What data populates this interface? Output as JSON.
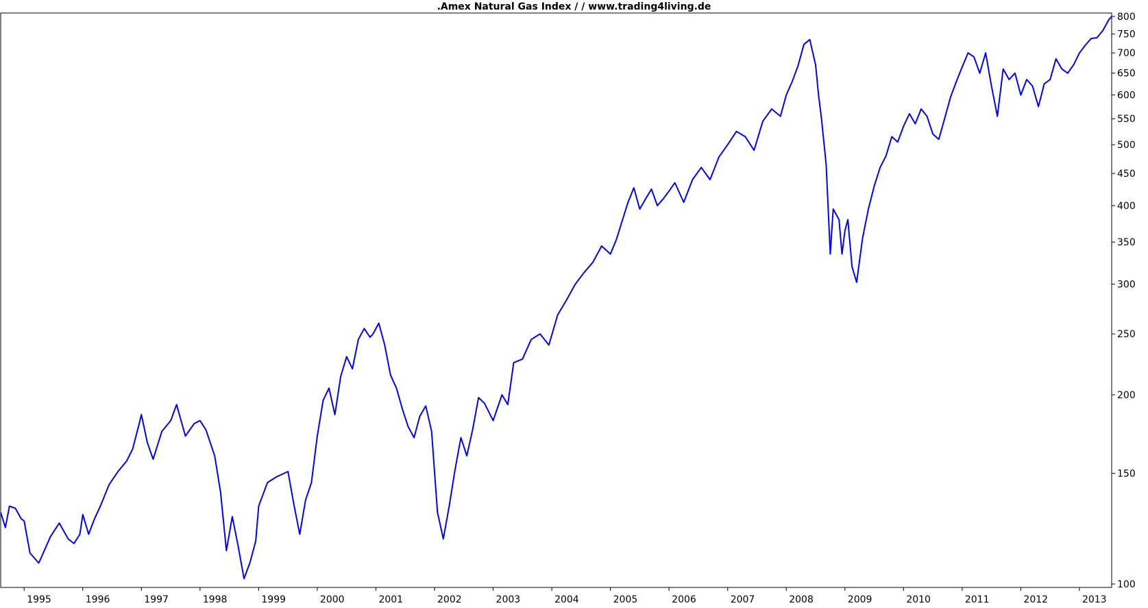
{
  "chart_data": {
    "type": "line",
    "title": ".Amex Natural Gas Index /  / www.trading4living.de",
    "xlabel": "",
    "ylabel": "",
    "y_scale": "log",
    "ylim": [
      100,
      800
    ],
    "xlim": [
      1994.6,
      2013.55
    ],
    "grid": false,
    "legend": "none",
    "line_color": "#0000ff",
    "x_ticks": [
      1995,
      1996,
      1997,
      1998,
      1999,
      2000,
      2001,
      2002,
      2003,
      2004,
      2005,
      2006,
      2007,
      2008,
      2009,
      2010,
      2011,
      2012,
      2013
    ],
    "x_tick_labels": [
      "1995",
      "1996",
      "1997",
      "1998",
      "1999",
      "2000",
      "2001",
      "2002",
      "2003",
      "2004",
      "2005",
      "2006",
      "2007",
      "2008",
      "2009",
      "2010",
      "2011",
      "2012",
      "2013"
    ],
    "y_ticks": [
      100,
      150,
      200,
      250,
      300,
      350,
      400,
      450,
      500,
      550,
      600,
      650,
      700,
      750,
      800
    ],
    "y_tick_labels": [
      "100",
      "150",
      "200",
      "250",
      "300",
      "350",
      "400",
      "450",
      "500",
      "550",
      "600",
      "650",
      "700",
      "750",
      "800"
    ],
    "series": [
      {
        "x": [
          1994.6,
          1994.68,
          1994.75,
          1994.85,
          1994.95,
          1995.0,
          1995.1,
          1995.25,
          1995.45,
          1995.6,
          1995.75,
          1995.85,
          1995.95,
          1996.0,
          1996.1,
          1996.2,
          1996.3,
          1996.45,
          1996.6,
          1996.75,
          1996.85,
          1996.95,
          1997.0,
          1997.1,
          1997.2,
          1997.35,
          1997.5,
          1997.6,
          1997.75,
          1997.9,
          1998.0,
          1998.1,
          1998.25,
          1998.35,
          1998.45,
          1998.55,
          1998.65,
          1998.75,
          1998.85,
          1998.95,
          1999.0,
          1999.15,
          1999.3,
          1999.5,
          1999.6,
          1999.7,
          1999.8,
          1999.9,
          2000.0,
          2000.1,
          2000.2,
          2000.3,
          2000.4,
          2000.5,
          2000.6,
          2000.7,
          2000.8,
          2000.9,
          2000.95,
          2001.05,
          2001.15,
          2001.25,
          2001.35,
          2001.45,
          2001.55,
          2001.65,
          2001.75,
          2001.85,
          2001.95,
          2002.05,
          2002.15,
          2002.25,
          2002.35,
          2002.45,
          2002.55,
          2002.65,
          2002.75,
          2002.85,
          2003.0,
          2003.15,
          2003.25,
          2003.35,
          2003.5,
          2003.65,
          2003.8,
          2003.95,
          2004.1,
          2004.25,
          2004.4,
          2004.55,
          2004.7,
          2004.85,
          2005.0,
          2005.1,
          2005.2,
          2005.3,
          2005.4,
          2005.5,
          2005.6,
          2005.7,
          2005.8,
          2005.9,
          2006.0,
          2006.1,
          2006.25,
          2006.4,
          2006.55,
          2006.7,
          2006.85,
          2007.0,
          2007.15,
          2007.3,
          2007.45,
          2007.6,
          2007.75,
          2007.9,
          2008.0,
          2008.1,
          2008.2,
          2008.3,
          2008.4,
          2008.5,
          2008.55,
          2008.6,
          2008.68,
          2008.75,
          2008.8,
          2008.9,
          2008.95,
          2009.0,
          2009.05,
          2009.12,
          2009.2,
          2009.3,
          2009.4,
          2009.5,
          2009.6,
          2009.7,
          2009.8,
          2009.9,
          2010.0,
          2010.1,
          2010.2,
          2010.3,
          2010.4,
          2010.5,
          2010.6,
          2010.7,
          2010.8,
          2010.9,
          2011.0,
          2011.1,
          2011.2,
          2011.3,
          2011.4,
          2011.5,
          2011.6,
          2011.7,
          2011.8,
          2011.9,
          2012.0,
          2012.1,
          2012.2,
          2012.3,
          2012.4,
          2012.5,
          2012.6,
          2012.7,
          2012.8,
          2012.9,
          2013.0,
          2013.1,
          2013.2,
          2013.3,
          2013.4,
          2013.5,
          2013.55
        ],
        "y": [
          130,
          123,
          133,
          132,
          127,
          126,
          112,
          108,
          119,
          125,
          118,
          116,
          120,
          129,
          120,
          127,
          133,
          144,
          151,
          157,
          164,
          178,
          186,
          168,
          158,
          175,
          182,
          193,
          172,
          180,
          182,
          176,
          160,
          140,
          113,
          128,
          115,
          102,
          108,
          117,
          133,
          145,
          148,
          151,
          134,
          120,
          136,
          145,
          172,
          196,
          205,
          186,
          214,
          230,
          220,
          245,
          255,
          247,
          250,
          260,
          240,
          215,
          205,
          190,
          178,
          171,
          185,
          192,
          175,
          130,
          118,
          133,
          152,
          171,
          160,
          176,
          198,
          194,
          182,
          200,
          193,
          225,
          228,
          245,
          250,
          240,
          268,
          283,
          300,
          313,
          325,
          345,
          335,
          353,
          378,
          405,
          427,
          395,
          410,
          425,
          400,
          410,
          422,
          435,
          405,
          440,
          460,
          440,
          478,
          500,
          525,
          515,
          490,
          545,
          570,
          555,
          600,
          630,
          668,
          722,
          735,
          670,
          600,
          550,
          465,
          335,
          395,
          380,
          335,
          365,
          380,
          320,
          302,
          355,
          395,
          430,
          460,
          480,
          515,
          505,
          535,
          560,
          540,
          570,
          555,
          520,
          510,
          550,
          595,
          630,
          665,
          700,
          690,
          650,
          700,
          620,
          555,
          660,
          635,
          650,
          600,
          635,
          620,
          575,
          625,
          635,
          685,
          660,
          650,
          670,
          700,
          720,
          738,
          740,
          760,
          790,
          800
        ]
      }
    ]
  }
}
